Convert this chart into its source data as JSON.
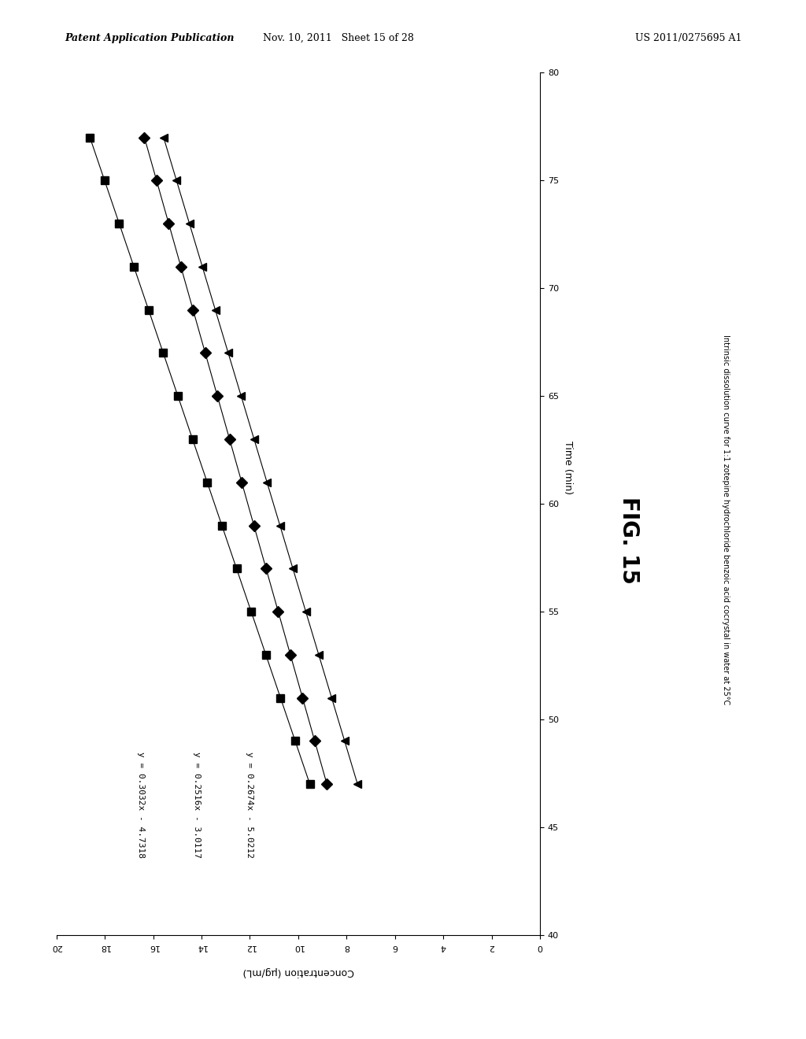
{
  "title": "FIG. 15",
  "subtitle": "Intrinsic dissolution curve for 1:1 zotepine hydrochloride benzoic acid cocrystal in water at 25°C",
  "xlabel": "Time (min)",
  "ylabel": "Concentration (μg/mL)",
  "header_left": "Patent Application Publication",
  "header_mid": "Nov. 10, 2011   Sheet 15 of 28",
  "header_right": "US 2011/0275695 A1",
  "x_min": 40,
  "x_max": 80,
  "y_min": 0,
  "y_max": 20,
  "x_ticks": [
    40,
    45,
    50,
    55,
    60,
    65,
    70,
    75,
    80
  ],
  "y_ticks": [
    0,
    2,
    4,
    6,
    8,
    10,
    12,
    14,
    16,
    18,
    20
  ],
  "series": [
    {
      "label": "y = 0.3032x - 4.7318",
      "slope": 0.3032,
      "intercept": -4.7318,
      "marker": "s",
      "color": "#000000",
      "markersize": 7
    },
    {
      "label": "y = 0.2516x - 3.0117",
      "slope": 0.2516,
      "intercept": -3.0117,
      "marker": "D",
      "color": "#000000",
      "markersize": 7
    },
    {
      "label": "y = 0.2674x - 5.0212",
      "slope": 0.2674,
      "intercept": -5.0212,
      "marker": "<",
      "color": "#000000",
      "markersize": 7
    }
  ],
  "time_points": [
    47,
    49,
    51,
    53,
    55,
    57,
    59,
    61,
    63,
    65,
    67,
    69,
    71,
    73,
    75,
    77
  ],
  "background_color": "#ffffff",
  "fig_label_fontsize": 20,
  "axis_label_fontsize": 9,
  "tick_fontsize": 8,
  "annotation_fontsize": 8,
  "header_fontsize": 9
}
